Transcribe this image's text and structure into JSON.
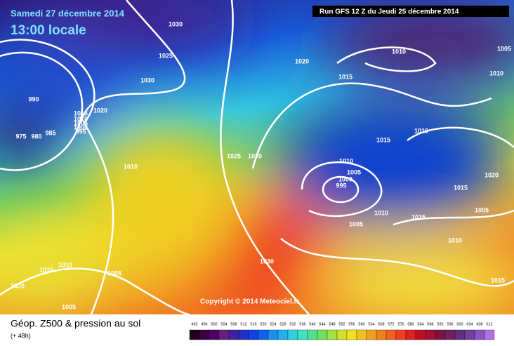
{
  "header": {
    "date": "Samedi 27 décembre 2014",
    "time": "13:00 locale",
    "run": "Run GFS 12 Z du Jeudi 25 décembre 2014"
  },
  "copyright": "Copyright © 2014 Meteociel.fr",
  "footer": {
    "title": "Géop. Z500 & pression au sol",
    "lead": "(+ 48h)"
  },
  "scale": [
    492,
    496,
    500,
    504,
    508,
    512,
    516,
    520,
    524,
    528,
    532,
    536,
    540,
    544,
    548,
    552,
    556,
    560,
    564,
    568,
    572,
    576,
    580,
    584,
    588,
    592,
    596,
    600,
    604,
    608,
    612
  ],
  "isobar_labels": [
    "1030",
    "1025",
    "1030",
    "990",
    "975",
    "980",
    "985",
    "1020",
    "1015",
    "1010",
    "1005",
    "1000",
    "995",
    "1010",
    "1020",
    "1010",
    "1005",
    "1010",
    "1015",
    "1010",
    "1015",
    "1025",
    "1020",
    "1010",
    "1005",
    "1000",
    "995",
    "1020",
    "1015",
    "1005",
    "1010",
    "1015",
    "1005",
    "1010",
    "1030",
    "1015",
    "1010",
    "1005",
    "1020",
    "1005",
    "1015"
  ]
}
